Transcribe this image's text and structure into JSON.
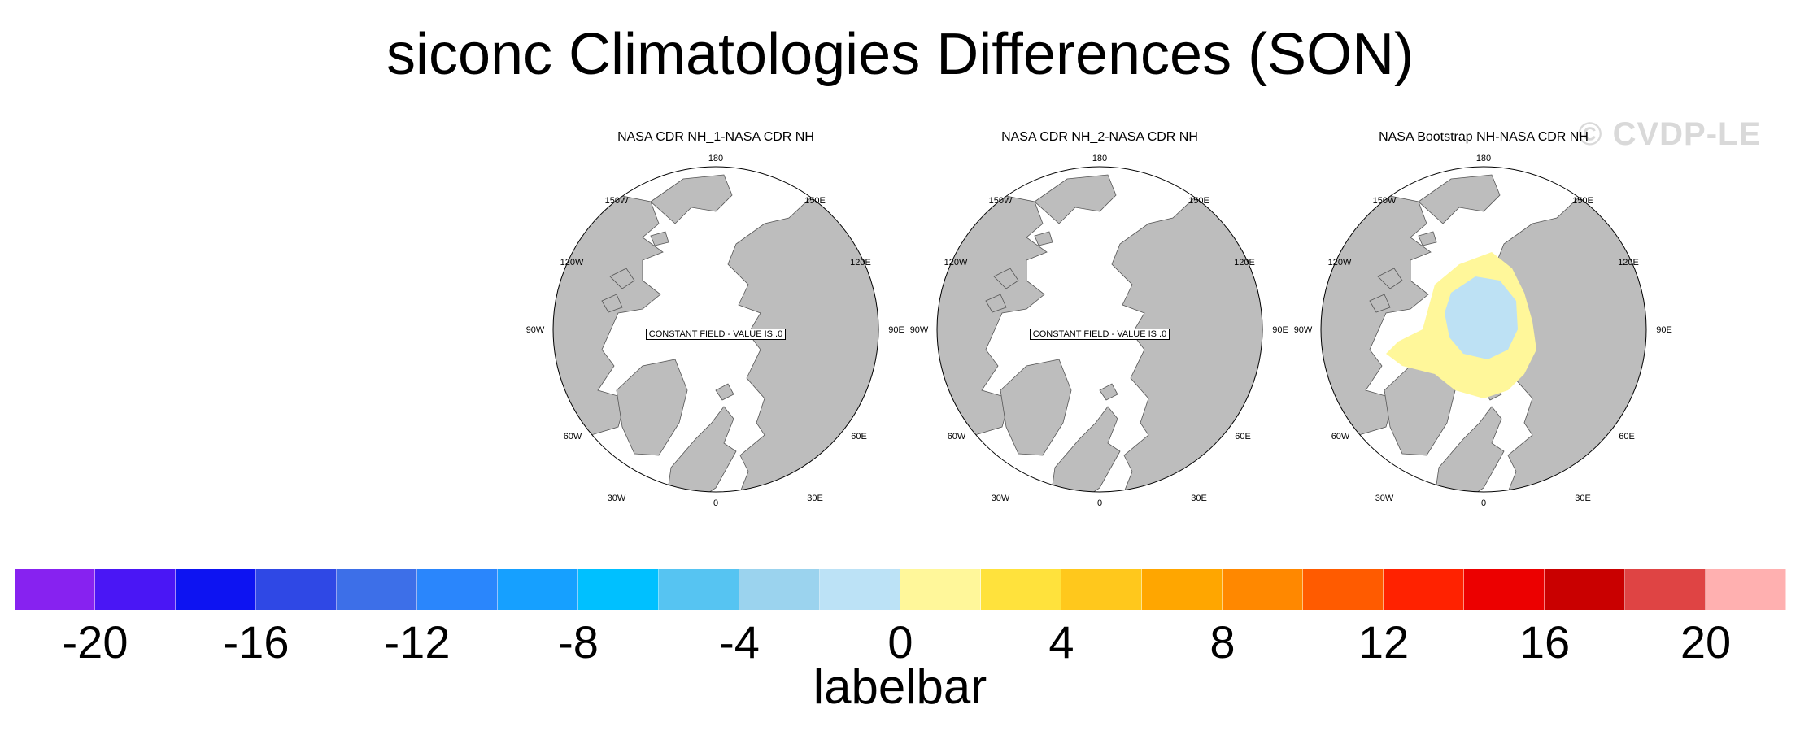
{
  "title": "siconc Climatologies Differences (SON)",
  "watermark": "© CVDP-LE",
  "panels": [
    {
      "title": "NASA CDR NH_1-NASA CDR NH",
      "note": "CONSTANT FIELD - VALUE IS .0",
      "has_data": false
    },
    {
      "title": "NASA CDR NH_2-NASA CDR NH",
      "note": "CONSTANT FIELD - VALUE IS .0",
      "has_data": false
    },
    {
      "title": "NASA Bootstrap NH-NASA CDR NH",
      "note": "",
      "has_data": true
    }
  ],
  "map_ticks": {
    "top": "180",
    "bottom": "0",
    "left": "90W",
    "right": "90E",
    "upper_left": [
      "150W",
      "120W"
    ],
    "upper_right": [
      "150E",
      "120E"
    ],
    "lower_left": [
      "60W",
      "30W"
    ],
    "lower_right": [
      "60E",
      "30E"
    ]
  },
  "colors": {
    "land": "#bdbdbd",
    "ocean": "#ffffff",
    "positive_fill": "#fff79a",
    "negative_fill": "#bde1f4"
  },
  "labelbar": {
    "title": "labelbar",
    "tick_labels": [
      "-20",
      "-16",
      "-12",
      "-8",
      "-4",
      "0",
      "4",
      "8",
      "12",
      "16",
      "20"
    ],
    "colors": [
      "#8722f0",
      "#4a16f5",
      "#0d13f2",
      "#2f48e5",
      "#3d6fe8",
      "#2a86fc",
      "#16a0ff",
      "#00c0ff",
      "#56c4f2",
      "#9bd3ee",
      "#bce2f6",
      "#fff79a",
      "#ffe23c",
      "#ffc81c",
      "#ffa600",
      "#ff8800",
      "#ff5b00",
      "#ff2200",
      "#ec0000",
      "#c90000",
      "#df4444",
      "#ffb0b0"
    ]
  }
}
